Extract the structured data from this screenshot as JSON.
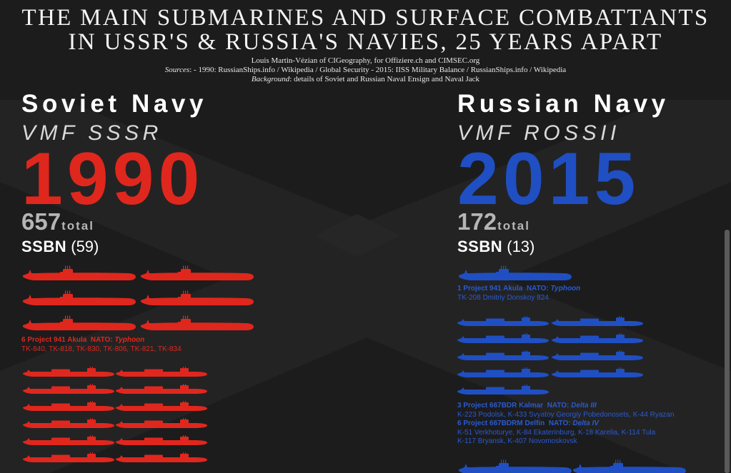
{
  "header": {
    "title_line_1": "THE MAIN SUBMARINES AND SURFACE COMBATTANTS",
    "title_line_2": "IN USSR'S & RUSSIA'S NAVIES, 25 YEARS APART",
    "credit": "Louis Martin-Vézian of CIGeography, for Offiziere.ch and CIMSEC.org",
    "sources_label": "Sources",
    "sources_text": ":  -  1990: RussianShips.info / Wikipedia / Global Security  -  2015: IISS Military Balance / RussianShips.info / Wikipedia",
    "background_label": "Background",
    "background_text": ": details of Soviet and Russian Naval Ensign and Naval Jack"
  },
  "soviet": {
    "name": "Soviet Navy",
    "alias": "VMF SSSR",
    "year": "1990",
    "total": "657",
    "total_word": "total",
    "category": "SSBN",
    "category_count": "(59)",
    "color": "#e0271d",
    "akula_count": 6,
    "akula_class": "6 Project 941 Akula",
    "akula_nato_label": "NATO:",
    "akula_nato": "Typhoon",
    "akula_hulls": "TK-840, TK-818, TK-830, TK-806, TK-821, TK-834",
    "delta_visible_count": 12
  },
  "russian": {
    "name": "Russian Navy",
    "alias": "VMF ROSSII",
    "year": "2015",
    "total": "172",
    "total_word": "total",
    "category": "SSBN",
    "category_count": "(13)",
    "color": "#1f4fc2",
    "akula_count": 1,
    "akula_class": "1 Project 941 Akula",
    "akula_nato_label": "NATO:",
    "akula_nato": "Typhoon",
    "akula_hulls": "TK-208 Dmitriy Donskoy 824",
    "delta_visible_count": 9,
    "kalmar_class": "3 Project 667BDR Kalmar",
    "kalmar_nato_label": "NATO:",
    "kalmar_nato": "Delta III",
    "kalmar_hulls": "K-223 Podolsk, K-433 Svyatoy Georgiy Pobedonosets, K-44 Ryazan",
    "delfin_class": "6 Project 667BDRM Delfin",
    "delfin_nato_label": "NATO:",
    "delfin_nato": "Delta IV",
    "delfin_hulls_1": "K-51 Verkhoturye, K-84 Ekaterinburg, K-18 Karelia, K-114 Tula",
    "delfin_hulls_2": "K-117 Bryansk, K-407 Novomoskovsk",
    "next_class_visible_count": 2
  },
  "colors": {
    "background": "#1c1c1d",
    "soviet_red": "#e0271d",
    "russian_blue": "#1f4fc2",
    "text": "#ffffff"
  }
}
